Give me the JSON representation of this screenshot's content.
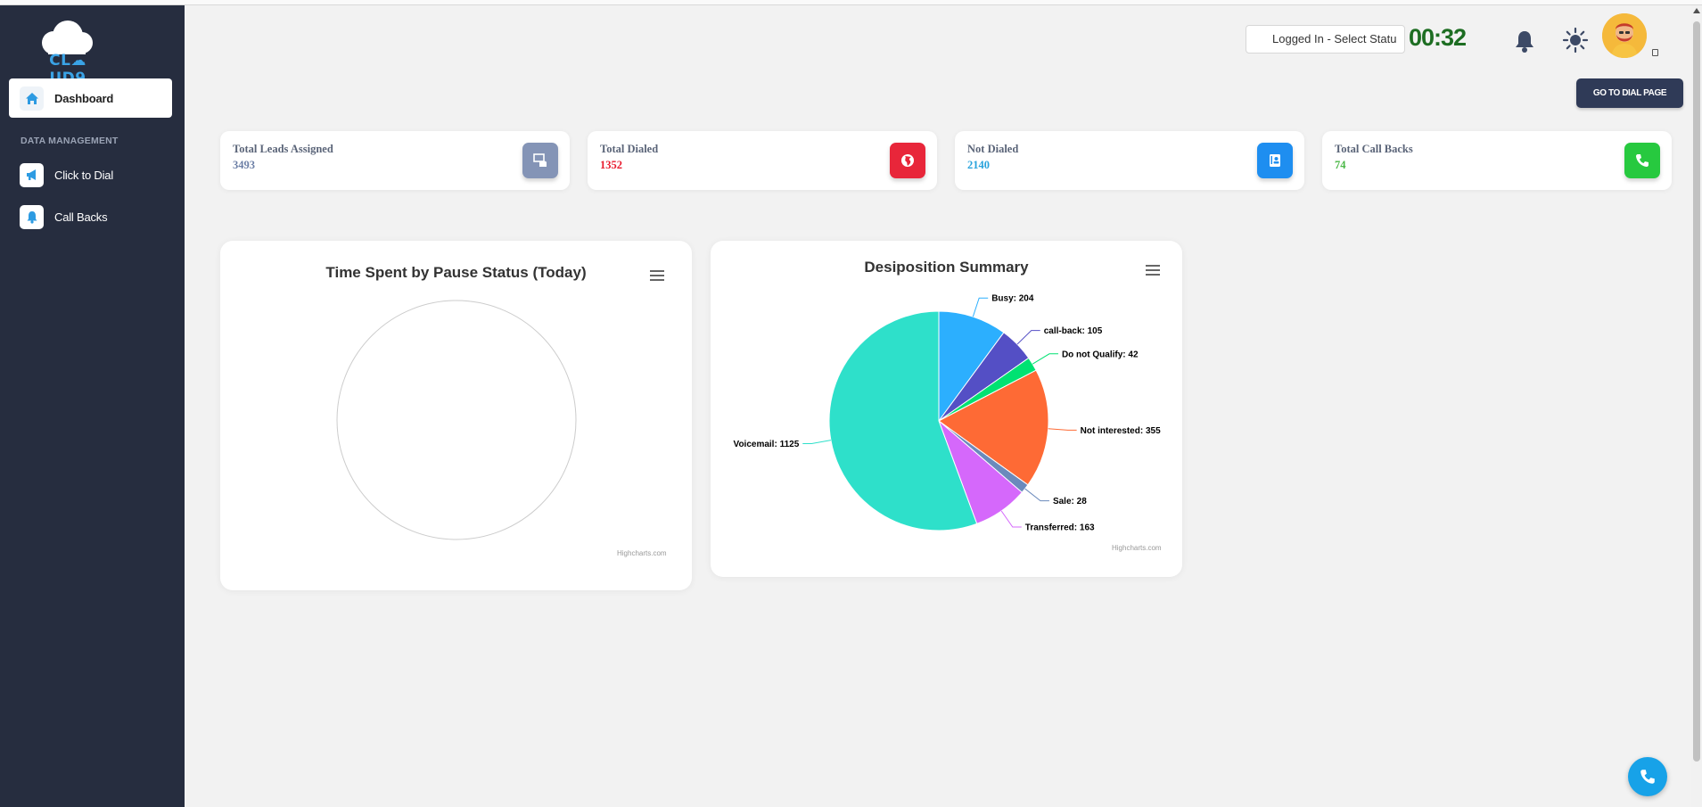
{
  "brand": {
    "name": "CL☁UD9"
  },
  "sidebar": {
    "items": [
      {
        "label": "Dashboard",
        "icon": "home-icon"
      },
      {
        "label": "Click to Dial",
        "icon": "megaphone-icon"
      },
      {
        "label": "Call Backs",
        "icon": "bell-icon"
      }
    ],
    "section_label": "DATA MANAGEMENT"
  },
  "header": {
    "status_select": "Logged In - Select Statu",
    "timer": "00:32",
    "dial_button": "GO TO DIAL PAGE"
  },
  "stats": [
    {
      "title": "Total Leads Assigned",
      "value": "3493",
      "value_color": "#6c7fa6",
      "icon": "database-icon",
      "icon_bg": "#8494b6"
    },
    {
      "title": "Total Dialed",
      "value": "1352",
      "value_color": "#e8192c",
      "icon": "globe-icon",
      "icon_bg": "#e8263a"
    },
    {
      "title": "Not Dialed",
      "value": "2140",
      "value_color": "#29a3dc",
      "icon": "contact-card-icon",
      "icon_bg": "#1e8ef0"
    },
    {
      "title": "Total Call Backs",
      "value": "74",
      "value_color": "#4cb848",
      "icon": "phone-icon",
      "icon_bg": "#27c93f"
    }
  ],
  "charts": {
    "pause": {
      "title": "Time Spent by Pause Status (Today)",
      "credit": "Highcharts.com"
    },
    "disposition": {
      "title": "Desiposition Summary",
      "credit": "Highcharts.com"
    }
  },
  "chart_data": [
    {
      "type": "pie",
      "title": "Time Spent by Pause Status (Today)",
      "categories": [],
      "values": []
    },
    {
      "type": "pie",
      "title": "Desiposition Summary",
      "categories": [
        "Busy",
        "call-back",
        "Do not Qualify",
        "Not interested",
        "Sale",
        "Transferred",
        "Voicemail"
      ],
      "values": [
        204,
        105,
        42,
        355,
        28,
        163,
        1125
      ],
      "colors": [
        "#2caffe",
        "#544fc5",
        "#00e272",
        "#fe6a35",
        "#6b8abc",
        "#d568fb",
        "#2ee0ca"
      ]
    }
  ]
}
